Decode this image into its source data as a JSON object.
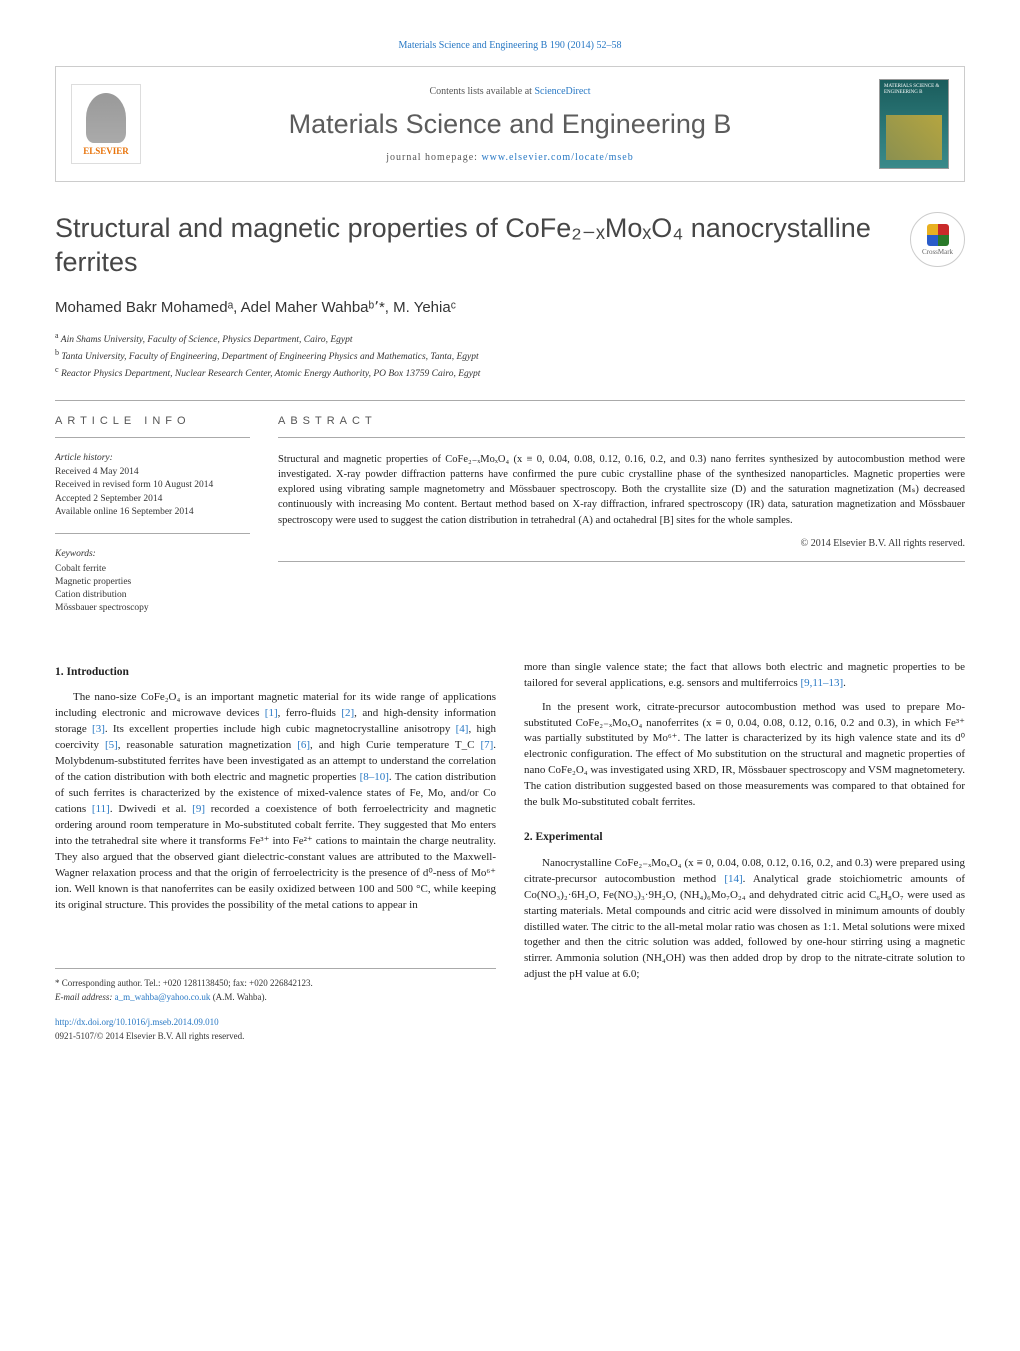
{
  "header": {
    "citation": "Materials Science and Engineering B 190 (2014) 52–58",
    "citation_color": "#2878c4"
  },
  "masthead": {
    "contents_prefix": "Contents lists available at ",
    "contents_link": "ScienceDirect",
    "journal_name": "Materials Science and Engineering B",
    "homepage_label": "journal homepage: ",
    "homepage_url": "www.elsevier.com/locate/mseb",
    "publisher_logo_text": "ELSEVIER",
    "cover_label": "MATERIALS SCIENCE & ENGINEERING B"
  },
  "title": "Structural and magnetic properties of CoFe₂₋ₓMoₓO₄ nanocrystalline ferrites",
  "crossmark_label": "CrossMark",
  "authors_html": "Mohamed Bakr Mohamedᵃ, Adel Maher Wahbaᵇ٬*, M. Yehiaᶜ",
  "affiliations": [
    {
      "sup": "a",
      "text": "Ain Shams University, Faculty of Science, Physics Department, Cairo, Egypt"
    },
    {
      "sup": "b",
      "text": "Tanta University, Faculty of Engineering, Department of Engineering Physics and Mathematics, Tanta, Egypt"
    },
    {
      "sup": "c",
      "text": "Reactor Physics Department, Nuclear Research Center, Atomic Energy Authority, PO Box 13759 Cairo, Egypt"
    }
  ],
  "article_info": {
    "heading": "ARTICLE INFO",
    "history_label": "Article history:",
    "received": "Received 4 May 2014",
    "revised": "Received in revised form 10 August 2014",
    "accepted": "Accepted 2 September 2014",
    "online": "Available online 16 September 2014",
    "keywords_label": "Keywords:",
    "keywords": [
      "Cobalt ferrite",
      "Magnetic properties",
      "Cation distribution",
      "Mössbauer spectroscopy"
    ]
  },
  "abstract": {
    "heading": "ABSTRACT",
    "text": "Structural and magnetic properties of CoFe₂₋ₓMoₓO₄ (x ≡ 0, 0.04, 0.08, 0.12, 0.16, 0.2, and 0.3) nano ferrites synthesized by autocombustion method were investigated. X-ray powder diffraction patterns have confirmed the pure cubic crystalline phase of the synthesized nanoparticles. Magnetic properties were explored using vibrating sample magnetometry and Mössbauer spectroscopy. Both the crystallite size (D) and the saturation magnetization (Mₛ) decreased continuously with increasing Mo content. Bertaut method based on X-ray diffraction, infrared spectroscopy (IR) data, saturation magnetization and Mössbauer spectroscopy were used to suggest the cation distribution in tetrahedral (A) and octahedral [B] sites for the whole samples.",
    "copyright": "© 2014 Elsevier B.V. All rights reserved."
  },
  "body": {
    "intro_heading": "1. Introduction",
    "intro_p1": "The nano-size CoFe₂O₄ is an important magnetic material for its wide range of applications including electronic and microwave devices [1], ferro-fluids [2], and high-density information storage [3]. Its excellent properties include high cubic magnetocrystalline anisotropy [4], high coercivity [5], reasonable saturation magnetization [6], and high Curie temperature T_C [7]. Molybdenum-substituted ferrites have been investigated as an attempt to understand the correlation of the cation distribution with both electric and magnetic properties [8–10]. The cation distribution of such ferrites is characterized by the existence of mixed-valence states of Fe, Mo, and/or Co cations [11]. Dwivedi et al. [9] recorded a coexistence of both ferroelectricity and magnetic ordering around room temperature in Mo-substituted cobalt ferrite. They suggested that Mo enters into the tetrahedral site where it transforms Fe³⁺ into Fe²⁺ cations to maintain the charge neutrality. They also argued that the observed giant dielectric-constant values are attributed to the Maxwell-Wagner relaxation process and that the origin of ferroelectricity is the presence of d⁰-ness of Mo⁶⁺ ion. Well known is that nanoferrites can be easily oxidized between 100 and 500 °C, while keeping its original structure. This provides the possibility of the metal cations to appear in",
    "intro_p2": "more than single valence state; the fact that allows both electric and magnetic properties to be tailored for several applications, e.g. sensors and multiferroics [9,11–13].",
    "intro_p3": "In the present work, citrate-precursor autocombustion method was used to prepare Mo-substituted CoFe₂₋ₓMoₓO₄ nanoferrites (x ≡ 0, 0.04, 0.08, 0.12, 0.16, 0.2 and 0.3), in which Fe³⁺ was partially substituted by Mo⁶⁺. The latter is characterized by its high valence state and its d⁰ electronic configuration. The effect of Mo substitution on the structural and magnetic properties of nano CoFe₂O₄ was investigated using XRD, IR, Mössbauer spectroscopy and VSM magnetometery. The cation distribution suggested based on those measurements was compared to that obtained for the bulk Mo-substituted cobalt ferrites.",
    "exp_heading": "2. Experimental",
    "exp_p1": "Nanocrystalline CoFe₂₋ₓMoₓO₄ (x ≡ 0, 0.04, 0.08, 0.12, 0.16, 0.2, and 0.3) were prepared using citrate-precursor autocombustion method [14]. Analytical grade stoichiometric amounts of Co(NO₃)₂·6H₂O, Fe(NO₃)₃·9H₂O, (NH₄)₆Mo₇O₂₄ and dehydrated citric acid C₆H₈O₇ were used as starting materials. Metal compounds and citric acid were dissolved in minimum amounts of doubly distilled water. The citric to the all-metal molar ratio was chosen as 1:1. Metal solutions were mixed together and then the citric solution was added, followed by one-hour stirring using a magnetic stirrer. Ammonia solution (NH₄OH) was then added drop by drop to the nitrate-citrate solution to adjust the pH value at 6.0;"
  },
  "footer": {
    "corresponding": "* Corresponding author. Tel.: +020 1281138450; fax: +020 226842123.",
    "email_label": "E-mail address: ",
    "email": "a_m_wahba@yahoo.co.uk",
    "email_suffix": " (A.M. Wahba).",
    "doi_url": "http://dx.doi.org/10.1016/j.mseb.2014.09.010",
    "copyright": "0921-5107/© 2014 Elsevier B.V. All rights reserved."
  },
  "refs_color": "#2878c4",
  "colors": {
    "link": "#2878c4",
    "heading_gray": "#5c5c5c",
    "text": "#222222",
    "border": "#aaaaaa"
  }
}
